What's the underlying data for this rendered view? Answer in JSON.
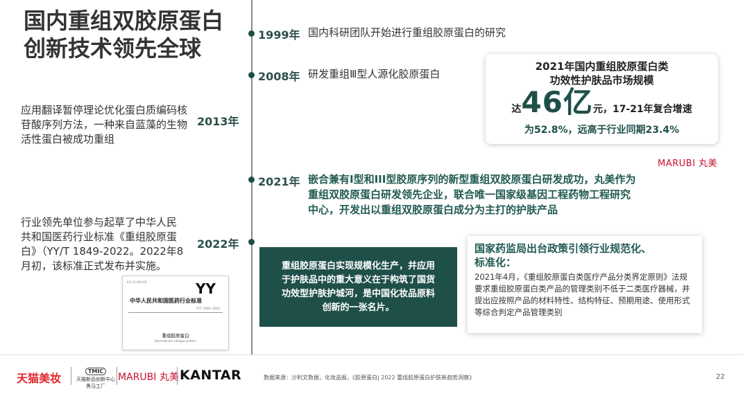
{
  "title": {
    "line1": "国内重组双胶原蛋白",
    "line2": "创新技术领先全球"
  },
  "timeline": {
    "y1999": {
      "year": "1999年",
      "text": "国内科研团队开始进行重组胶原蛋白的研究"
    },
    "y2008": {
      "year": "2008年",
      "text": "研发重组Ⅲ型人源化胶原蛋白"
    },
    "y2013": {
      "year": "2013年",
      "text": "应用翻译暂停理论优化蛋白质编码核苷酸序列方法，一种来自蓝藻的生物活性蛋白被成功重组"
    },
    "y2021": {
      "year": "2021年",
      "line1": "嵌合兼有I型和III型胶原序列的新型重组双胶原蛋白研发成功，丸美作为",
      "line2": "重组双胶原蛋白研发领先企业，联合唯一国家级基因工程药物工程研究",
      "line3": "中心，开发出以重组双胶原蛋白成分为主打的护肤产品"
    },
    "y2022": {
      "year": "2022年",
      "text": "行业领先单位参与起草了中华人民共和国医药行业标准《重组胶原蛋白》（YY/T 1849-2022。2022年8月初，该标准正式发布并实施。"
    }
  },
  "market": {
    "title_line1": "2021年国内重组胶原蛋白类",
    "title_line2": "功效性护肤品市场规模",
    "prefix": "达",
    "value": "46亿",
    "suffix": "元，17-21年复合增速",
    "line3": "为52.8%，远高于行业同期23.4%"
  },
  "marubi_logo": "MARUBI 丸美",
  "green_box": {
    "line1": "重组胶原蛋白实现规模化生产，并应用",
    "line2": "于护肤品中的重大意义在于构筑了国货",
    "line3": "功效型护肤护城河，是中国化妆品原料",
    "line4": "创新的一张名片。"
  },
  "policy": {
    "heading_line1": "国家药监局出台政策引领行业规范化、",
    "heading_line2": "标准化：",
    "body": "2021年4月，《重组胶原蛋白类医疗产品分类界定原则》法规要求重组胶原蛋白类产品的管理类别不低于二类医疗器械，并提出应按照产品的材料特性、结构特征、预期用途、使用形式等综合判定产品管理类别"
  },
  "doc_thumb": {
    "yy": "YY",
    "standard_org": "中华人民共和国医药行业标准",
    "code": "YY/T 1849—2022",
    "name": "重组胶原蛋白",
    "en": "Recombinant collagen protein"
  },
  "footer": {
    "tmall": "天猫美妆",
    "tmic_badge": "TMIC",
    "tmic_sub1": "天猫新品创新中心",
    "tmic_sub2": "黑马工厂",
    "marubi": "MARUBI 丸美",
    "kantar": "KANTAR",
    "source": "数据来源：沙利文数据，化妆品报，《胶原蛋白| 2022 重组胶原蛋白护肤新趋势洞察》",
    "page": "22"
  }
}
